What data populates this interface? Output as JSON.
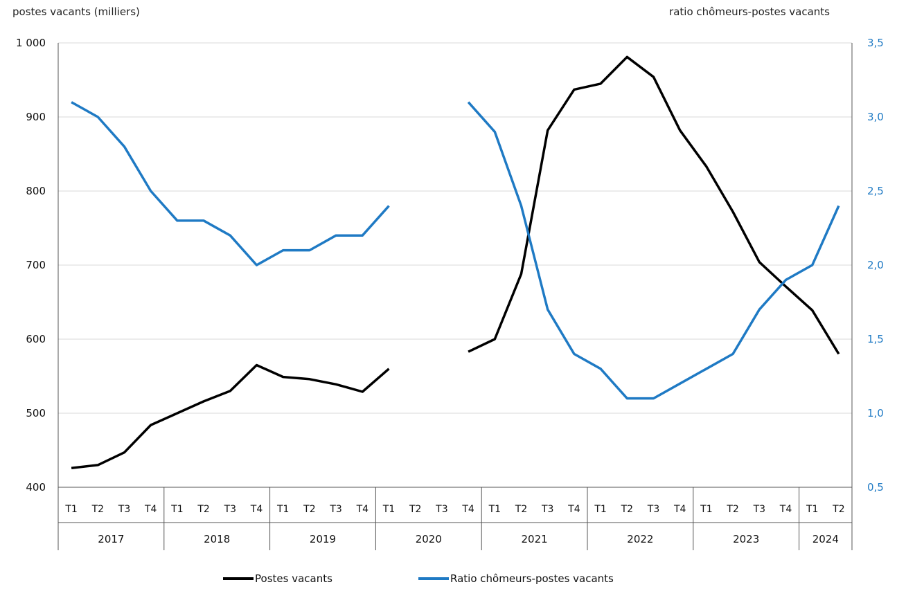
{
  "chart_data": {
    "type": "line",
    "left_axis_title": "postes vacants (milliers)",
    "right_axis_title": "ratio chômeurs-postes vacants",
    "left_ylim": [
      400,
      1000
    ],
    "right_ylim": [
      0.5,
      3.5
    ],
    "left_ticks": [
      "400",
      "500",
      "600",
      "700",
      "800",
      "900",
      "1 000"
    ],
    "right_ticks": [
      "0,5",
      "1,0",
      "1,5",
      "2,0",
      "2,5",
      "3,0",
      "3,5"
    ],
    "quarter_labels": [
      "T1",
      "T2",
      "T3",
      "T4",
      "T1",
      "T2",
      "T3",
      "T4",
      "T1",
      "T2",
      "T3",
      "T4",
      "T1",
      "T2",
      "T3",
      "T4",
      "T1",
      "T2",
      "T3",
      "T4",
      "T1",
      "T2",
      "T3",
      "T4",
      "T1",
      "T2",
      "T3",
      "T4",
      "T1",
      "T2"
    ],
    "years": [
      {
        "label": "2017",
        "quarters": 4
      },
      {
        "label": "2018",
        "quarters": 4
      },
      {
        "label": "2019",
        "quarters": 4
      },
      {
        "label": "2020",
        "quarters": 4
      },
      {
        "label": "2021",
        "quarters": 4
      },
      {
        "label": "2022",
        "quarters": 4
      },
      {
        "label": "2023",
        "quarters": 4
      },
      {
        "label": "2024",
        "quarters": 2
      }
    ],
    "grid": true,
    "legend_position": "bottom",
    "series": [
      {
        "name": "Postes vacants",
        "axis": "left",
        "color": "#000000",
        "values": [
          426,
          430,
          447,
          484,
          500,
          516,
          530,
          565,
          549,
          546,
          539,
          529,
          560,
          null,
          null,
          583,
          600,
          688,
          882,
          937,
          945,
          981,
          954,
          882,
          833,
          772,
          704,
          671,
          639,
          580
        ]
      },
      {
        "name": "Ratio chômeurs-postes vacants",
        "axis": "right",
        "color": "#1f7ac4",
        "values": [
          3.1,
          3.0,
          2.8,
          2.5,
          2.3,
          2.3,
          2.2,
          2.0,
          2.1,
          2.1,
          2.2,
          2.2,
          2.4,
          null,
          null,
          3.1,
          2.9,
          2.4,
          1.7,
          1.4,
          1.3,
          1.1,
          1.1,
          1.2,
          1.3,
          1.4,
          1.7,
          1.9,
          2.0,
          2.4
        ]
      }
    ]
  }
}
